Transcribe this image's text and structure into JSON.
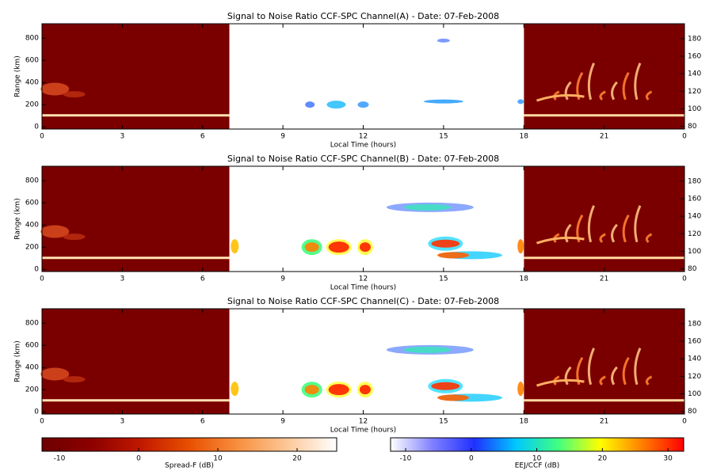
{
  "chart_data": [
    {
      "type": "heatmap",
      "title": "Signal to Noise Ratio CCF-SPC Channel(A) - Date: 07-Feb-2008",
      "x_label": "Local Time (hours)",
      "y_label": "Range (km)",
      "xlim": [
        0,
        24
      ],
      "xticks": [
        0,
        3,
        6,
        9,
        12,
        15,
        18,
        21,
        {
          "value": 24,
          "label": "0"
        }
      ],
      "ylim": [
        -20,
        930
      ],
      "yticks": [
        0,
        200,
        400,
        600,
        800
      ],
      "y2lim": [
        77,
        197
      ],
      "y2ticks": [
        80,
        100,
        120,
        140,
        160,
        180
      ]
    },
    {
      "type": "heatmap",
      "title": "Signal to Noise Ratio CCF-SPC Channel(B) - Date: 07-Feb-2008",
      "x_label": "Local Time (hours)",
      "y_label": "Range (km)",
      "xlim": [
        0,
        24
      ],
      "xticks": [
        0,
        3,
        6,
        9,
        12,
        15,
        18,
        21,
        {
          "value": 24,
          "label": "0"
        }
      ],
      "ylim": [
        -20,
        930
      ],
      "yticks": [
        0,
        200,
        400,
        600,
        800
      ],
      "y2lim": [
        77,
        197
      ],
      "y2ticks": [
        80,
        100,
        120,
        140,
        160,
        180
      ]
    },
    {
      "type": "heatmap",
      "title": "Signal to Noise Ratio CCF-SPC Channel(C) - Date: 07-Feb-2008",
      "x_label": "Local Time (hours)",
      "y_label": "Range (km)",
      "xlim": [
        0,
        24
      ],
      "xticks": [
        0,
        3,
        6,
        9,
        12,
        15,
        18,
        21,
        {
          "value": 24,
          "label": "0"
        }
      ],
      "ylim": [
        -20,
        930
      ],
      "yticks": [
        0,
        200,
        400,
        600,
        800
      ],
      "y2lim": [
        77,
        197
      ],
      "y2ticks": [
        80,
        100,
        120,
        140,
        160,
        180
      ]
    },
    {
      "type": "colorbar",
      "label": "Spread-F (dB)",
      "xlim": [
        -12.2,
        25
      ],
      "xticks": [
        -10,
        0,
        10,
        20
      ],
      "colors": [
        "#6e0000",
        "#8c0000",
        "#c01800",
        "#e85000",
        "#f89040",
        "#fcc898",
        "#ffffff"
      ]
    },
    {
      "type": "colorbar",
      "label": "EEJ/CCF (dB)",
      "xlim": [
        -12.3,
        32.4
      ],
      "xticks": [
        -10,
        0,
        10,
        20,
        30
      ],
      "colors": [
        "#ffffff",
        "#8080ff",
        "#2030ff",
        "#00c8ff",
        "#40ff80",
        "#ffff00",
        "#ff8000",
        "#ff0000"
      ]
    }
  ]
}
